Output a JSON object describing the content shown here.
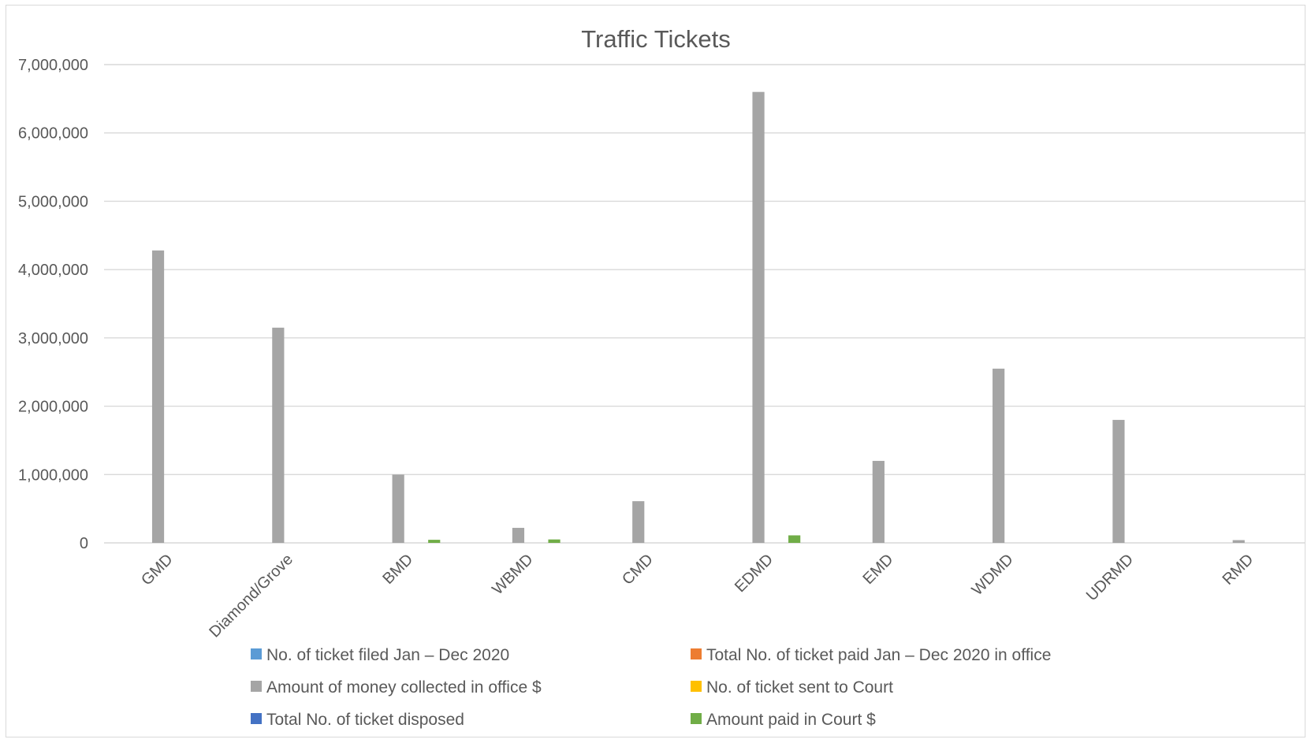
{
  "chart_data": {
    "type": "bar",
    "title": "Traffic Tickets",
    "xlabel": "",
    "ylabel": "",
    "ylim": [
      0,
      7000000
    ],
    "yticks": [
      0,
      1000000,
      2000000,
      3000000,
      4000000,
      5000000,
      6000000,
      7000000
    ],
    "ytick_labels": [
      "0",
      "1,000,000",
      "2,000,000",
      "3,000,000",
      "4,000,000",
      "5,000,000",
      "6,000,000",
      "7,000,000"
    ],
    "grid": true,
    "legend_position": "bottom",
    "categories": [
      "GMD",
      "Diamond/Grove",
      "BMD",
      "WBMD",
      "CMD",
      "EDMD",
      "EMD",
      "WDMD",
      "UDRMD",
      "RMD"
    ],
    "series": [
      {
        "name": "No. of ticket filed Jan  – Dec 2020",
        "color": "#5b9bd5",
        "values": [
          0,
          0,
          0,
          0,
          0,
          0,
          0,
          0,
          0,
          0
        ]
      },
      {
        "name": "Total No. of ticket paid Jan  – Dec 2020 in office",
        "color": "#ed7d31",
        "values": [
          0,
          0,
          0,
          0,
          0,
          0,
          0,
          0,
          0,
          0
        ]
      },
      {
        "name": "Amount of money collected in office $",
        "color": "#a5a5a5",
        "values": [
          4280000,
          3150000,
          1000000,
          220000,
          610000,
          6600000,
          1200000,
          2550000,
          1800000,
          40000
        ]
      },
      {
        "name": "No. of ticket sent to Court",
        "color": "#ffc000",
        "values": [
          0,
          0,
          0,
          0,
          0,
          0,
          0,
          0,
          0,
          0
        ]
      },
      {
        "name": "Total No. of ticket disposed",
        "color": "#4472c4",
        "values": [
          0,
          0,
          0,
          0,
          0,
          0,
          0,
          0,
          0,
          0
        ]
      },
      {
        "name": "Amount paid in Court $",
        "color": "#70ad47",
        "values": [
          0,
          0,
          45000,
          50000,
          0,
          110000,
          0,
          0,
          0,
          0
        ]
      }
    ]
  }
}
